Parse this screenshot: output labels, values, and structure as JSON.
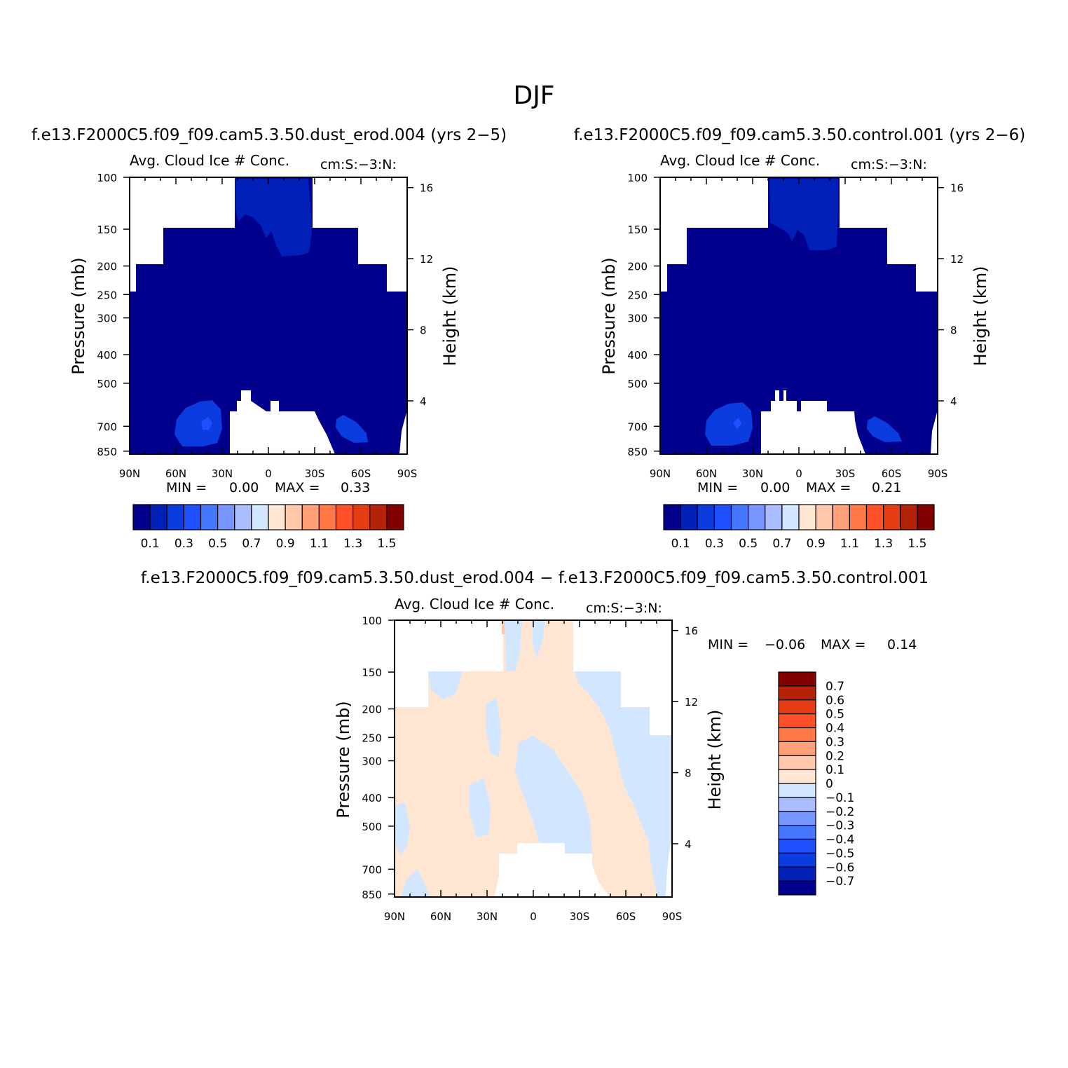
{
  "figure": {
    "title": "DJF"
  },
  "colors": {
    "level_colors": [
      "#00008c",
      "#0020b8",
      "#0a3ce0",
      "#1e50ff",
      "#4678ff",
      "#7896ff",
      "#aabeff",
      "#d2e6ff",
      "#ffe6d2",
      "#ffc8aa",
      "#ffa078",
      "#ff7846",
      "#ff5028",
      "#e63c14",
      "#b42308",
      "#820000"
    ],
    "diff_colors": [
      "#00008c",
      "#0020b8",
      "#0a3ce0",
      "#1e50ff",
      "#4678ff",
      "#7896ff",
      "#aabeff",
      "#d2e6ff",
      "#ffe6d2",
      "#ffc8aa",
      "#ffa078",
      "#ff7846",
      "#ff5028",
      "#e63c14",
      "#b42308",
      "#820000"
    ]
  },
  "chart_data": [
    {
      "type": "heatmap",
      "case_title": "f.e13.F2000C5.f09_f09.cam5.3.50.dust_erod.004 (yrs 2−5)",
      "panel_title": "Avg. Cloud Ice # Conc.",
      "units": "cm:S:−3:N:",
      "ylabel": "Pressure (mb)",
      "ylabel_right": "Height (km)",
      "x_ticks": [
        "90N",
        "60N",
        "30N",
        "0",
        "30S",
        "60S",
        "90S"
      ],
      "y_ticks": [
        "100",
        "150",
        "200",
        "250",
        "300",
        "400",
        "500",
        "700",
        "850"
      ],
      "y_ticks_right": [
        "16",
        "12",
        "8",
        "4"
      ],
      "min_label": "MIN =",
      "min_value": "0.00",
      "max_label": "MAX =",
      "max_value": "0.33",
      "colorbar_labels": [
        "0.1",
        "0.3",
        "0.5",
        "0.7",
        "0.9",
        "1.1",
        "1.3",
        "1.5"
      ],
      "colorbar_levels": [
        0.1,
        0.2,
        0.3,
        0.4,
        0.5,
        0.6,
        0.7,
        0.8,
        0.9,
        1.0,
        1.1,
        1.2,
        1.3,
        1.4,
        1.5
      ],
      "min": 0.0,
      "max": 0.33
    },
    {
      "type": "heatmap",
      "case_title": "f.e13.F2000C5.f09_f09.cam5.3.50.control.001 (yrs 2−6)",
      "panel_title": "Avg. Cloud Ice # Conc.",
      "units": "cm:S:−3:N:",
      "ylabel": "Pressure (mb)",
      "ylabel_right": "Height (km)",
      "x_ticks": [
        "90N",
        "60N",
        "30N",
        "0",
        "30S",
        "60S",
        "90S"
      ],
      "y_ticks": [
        "100",
        "150",
        "200",
        "250",
        "300",
        "400",
        "500",
        "700",
        "850"
      ],
      "y_ticks_right": [
        "16",
        "12",
        "8",
        "4"
      ],
      "min_label": "MIN =",
      "min_value": "0.00",
      "max_label": "MAX =",
      "max_value": "0.21",
      "colorbar_labels": [
        "0.1",
        "0.3",
        "0.5",
        "0.7",
        "0.9",
        "1.1",
        "1.3",
        "1.5"
      ],
      "colorbar_levels": [
        0.1,
        0.2,
        0.3,
        0.4,
        0.5,
        0.6,
        0.7,
        0.8,
        0.9,
        1.0,
        1.1,
        1.2,
        1.3,
        1.4,
        1.5
      ],
      "min": 0.0,
      "max": 0.21
    },
    {
      "type": "heatmap",
      "case_title": "f.e13.F2000C5.f09_f09.cam5.3.50.dust_erod.004 − f.e13.F2000C5.f09_f09.cam5.3.50.control.001",
      "panel_title": "Avg. Cloud Ice # Conc.",
      "units": "cm:S:−3:N:",
      "ylabel": "Pressure (mb)",
      "ylabel_right": "Height (km)",
      "x_ticks": [
        "90N",
        "60N",
        "30N",
        "0",
        "30S",
        "60S",
        "90S"
      ],
      "y_ticks": [
        "100",
        "150",
        "200",
        "250",
        "300",
        "400",
        "500",
        "700",
        "850"
      ],
      "y_ticks_right": [
        "16",
        "12",
        "8",
        "4"
      ],
      "min_label": "MIN =",
      "min_value": "−0.06",
      "max_label": "MAX =",
      "max_value": "0.14",
      "colorbar_labels": [
        "0.7",
        "0.6",
        "0.5",
        "0.4",
        "0.3",
        "0.2",
        "0.1",
        "0",
        "−0.1",
        "−0.2",
        "−0.3",
        "−0.4",
        "−0.5",
        "−0.6",
        "−0.7"
      ],
      "min": -0.06,
      "max": 0.14
    }
  ]
}
